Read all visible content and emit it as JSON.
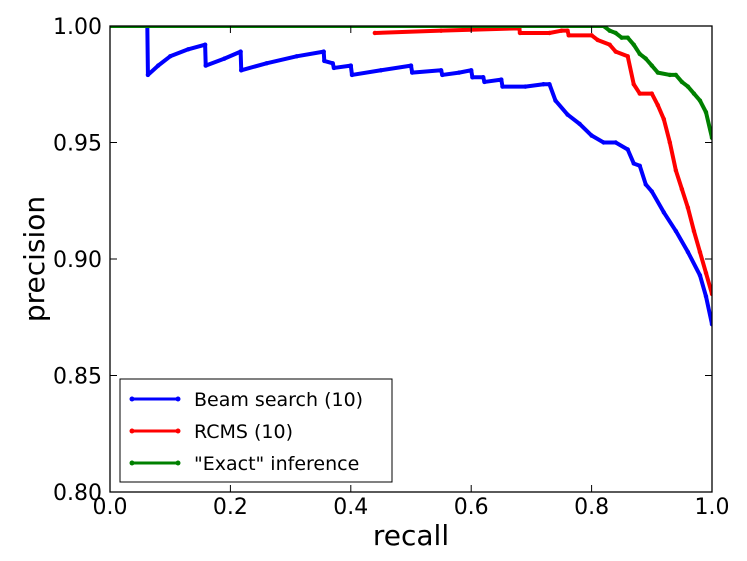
{
  "chart_data": {
    "type": "line",
    "title": "",
    "xlabel": "recall",
    "ylabel": "precision",
    "xlim": [
      0.0,
      1.0
    ],
    "ylim": [
      0.8,
      1.0
    ],
    "xticks": [
      "0.0",
      "0.2",
      "0.4",
      "0.6",
      "0.8",
      "1.0"
    ],
    "yticks": [
      "0.80",
      "0.85",
      "0.90",
      "0.95",
      "1.00"
    ],
    "grid": false,
    "legend_position": "lower-left",
    "series": [
      {
        "name": "Beam search (10)",
        "color": "#0000ff",
        "points": [
          [
            0.0,
            1.0
          ],
          [
            0.062,
            1.0
          ],
          [
            0.063,
            0.979
          ],
          [
            0.08,
            0.983
          ],
          [
            0.1,
            0.987
          ],
          [
            0.13,
            0.99
          ],
          [
            0.158,
            0.992
          ],
          [
            0.159,
            0.983
          ],
          [
            0.19,
            0.986
          ],
          [
            0.217,
            0.989
          ],
          [
            0.218,
            0.981
          ],
          [
            0.26,
            0.984
          ],
          [
            0.31,
            0.987
          ],
          [
            0.355,
            0.989
          ],
          [
            0.356,
            0.985
          ],
          [
            0.37,
            0.984
          ],
          [
            0.372,
            0.982
          ],
          [
            0.4,
            0.983
          ],
          [
            0.402,
            0.979
          ],
          [
            0.45,
            0.981
          ],
          [
            0.5,
            0.983
          ],
          [
            0.502,
            0.98
          ],
          [
            0.55,
            0.981
          ],
          [
            0.552,
            0.979
          ],
          [
            0.58,
            0.98
          ],
          [
            0.6,
            0.981
          ],
          [
            0.602,
            0.978
          ],
          [
            0.62,
            0.978
          ],
          [
            0.622,
            0.976
          ],
          [
            0.65,
            0.977
          ],
          [
            0.652,
            0.974
          ],
          [
            0.69,
            0.974
          ],
          [
            0.72,
            0.975
          ],
          [
            0.73,
            0.975
          ],
          [
            0.74,
            0.968
          ],
          [
            0.76,
            0.962
          ],
          [
            0.78,
            0.958
          ],
          [
            0.8,
            0.953
          ],
          [
            0.82,
            0.95
          ],
          [
            0.84,
            0.95
          ],
          [
            0.86,
            0.947
          ],
          [
            0.87,
            0.941
          ],
          [
            0.88,
            0.94
          ],
          [
            0.89,
            0.932
          ],
          [
            0.9,
            0.929
          ],
          [
            0.92,
            0.92
          ],
          [
            0.94,
            0.912
          ],
          [
            0.96,
            0.903
          ],
          [
            0.98,
            0.893
          ],
          [
            0.99,
            0.884
          ],
          [
            1.0,
            0.872
          ]
        ]
      },
      {
        "name": "RCMS (10)",
        "color": "#ff0000",
        "points": [
          [
            0.44,
            0.997
          ],
          [
            0.55,
            0.998
          ],
          [
            0.68,
            0.999
          ],
          [
            0.681,
            0.997
          ],
          [
            0.73,
            0.997
          ],
          [
            0.75,
            0.998
          ],
          [
            0.76,
            0.998
          ],
          [
            0.762,
            0.996
          ],
          [
            0.8,
            0.996
          ],
          [
            0.81,
            0.994
          ],
          [
            0.83,
            0.992
          ],
          [
            0.84,
            0.989
          ],
          [
            0.86,
            0.987
          ],
          [
            0.87,
            0.975
          ],
          [
            0.88,
            0.971
          ],
          [
            0.9,
            0.971
          ],
          [
            0.91,
            0.966
          ],
          [
            0.92,
            0.96
          ],
          [
            0.93,
            0.95
          ],
          [
            0.94,
            0.938
          ],
          [
            0.95,
            0.93
          ],
          [
            0.96,
            0.922
          ],
          [
            0.97,
            0.912
          ],
          [
            0.98,
            0.903
          ],
          [
            0.99,
            0.894
          ],
          [
            1.0,
            0.885
          ]
        ]
      },
      {
        "name": "\"Exact\" inference",
        "color": "#008000",
        "points": [
          [
            0.0,
            1.0
          ],
          [
            0.82,
            1.0
          ],
          [
            0.83,
            0.998
          ],
          [
            0.84,
            0.997
          ],
          [
            0.85,
            0.995
          ],
          [
            0.86,
            0.995
          ],
          [
            0.87,
            0.992
          ],
          [
            0.88,
            0.988
          ],
          [
            0.89,
            0.986
          ],
          [
            0.9,
            0.983
          ],
          [
            0.91,
            0.98
          ],
          [
            0.93,
            0.979
          ],
          [
            0.94,
            0.979
          ],
          [
            0.95,
            0.976
          ],
          [
            0.96,
            0.974
          ],
          [
            0.97,
            0.971
          ],
          [
            0.98,
            0.968
          ],
          [
            0.99,
            0.963
          ],
          [
            1.0,
            0.952
          ]
        ]
      }
    ]
  }
}
